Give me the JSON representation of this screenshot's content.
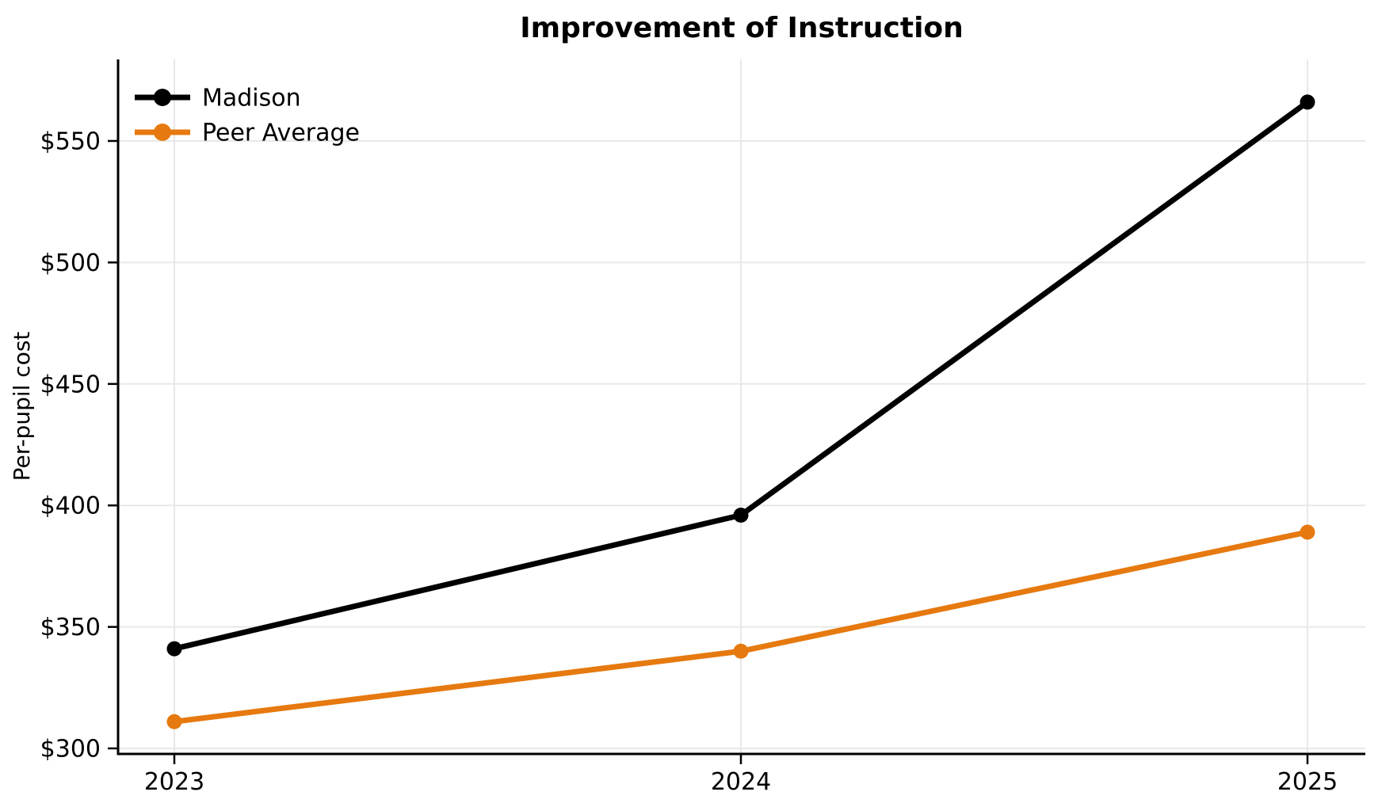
{
  "chart_data": {
    "type": "line",
    "title": "Improvement of Instruction",
    "xlabel": "",
    "ylabel": "Per-pupil cost",
    "categories": [
      "2023",
      "2024",
      "2025"
    ],
    "series": [
      {
        "name": "Madison",
        "color": "#000000",
        "values": [
          341,
          396,
          566
        ]
      },
      {
        "name": "Peer Average",
        "color": "#e6790f",
        "values": [
          311,
          340,
          389
        ]
      }
    ],
    "y_ticks": [
      300,
      350,
      400,
      450,
      500,
      550
    ],
    "y_tick_labels": [
      "$300",
      "$350",
      "$400",
      "$450",
      "$500",
      "$550"
    ],
    "ylim": [
      298,
      584
    ],
    "grid": true,
    "legend_position": "upper-left",
    "colors": {
      "background": "#ffffff",
      "grid": "#e8e8e8",
      "axis": "#000000",
      "text": "#000000"
    }
  }
}
